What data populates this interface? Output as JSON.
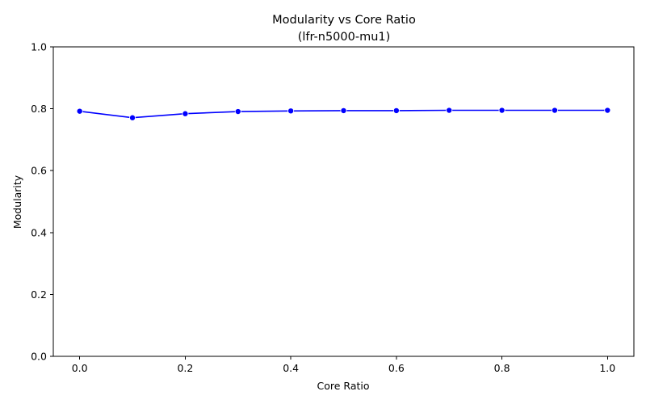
{
  "chart_data": {
    "type": "line",
    "title": "Modularity vs Core Ratio",
    "subtitle": "(lfr-n5000-mu1)",
    "xlabel": "Core Ratio",
    "ylabel": "Modularity",
    "xlim": [
      -0.05,
      1.05
    ],
    "ylim": [
      0.0,
      1.0
    ],
    "xticks": [
      0.0,
      0.2,
      0.4,
      0.6,
      0.8,
      1.0
    ],
    "xtick_labels": [
      "0.0",
      "0.2",
      "0.4",
      "0.6",
      "0.8",
      "1.0"
    ],
    "yticks": [
      0.0,
      0.2,
      0.4,
      0.6,
      0.8,
      1.0
    ],
    "ytick_labels": [
      "0.0",
      "0.2",
      "0.4",
      "0.6",
      "0.8",
      "1.0"
    ],
    "grid": false,
    "legend": false,
    "color": "#0000ff",
    "markers": true,
    "x": [
      0.0,
      0.1,
      0.2,
      0.3,
      0.4,
      0.5,
      0.6,
      0.7,
      0.8,
      0.9,
      1.0
    ],
    "y": [
      0.792,
      0.771,
      0.784,
      0.791,
      0.793,
      0.794,
      0.794,
      0.795,
      0.795,
      0.795,
      0.795
    ]
  }
}
